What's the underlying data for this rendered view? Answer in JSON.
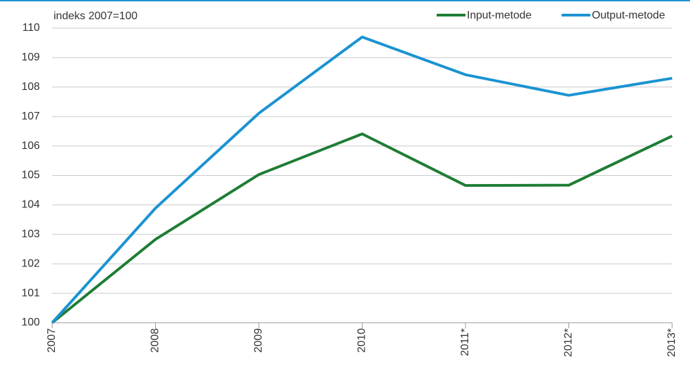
{
  "chart_data": {
    "type": "line",
    "y_axis_label": "indeks 2007=100",
    "categories": [
      "2007",
      "2008",
      "2009",
      "2010",
      "2011*",
      "2012*",
      "2013*"
    ],
    "series": [
      {
        "name": "Input-metode",
        "color": "#1e7d34",
        "values": [
          100,
          102.83,
          105.03,
          106.41,
          104.66,
          104.67,
          106.34
        ]
      },
      {
        "name": "Output-metode",
        "color": "#1b93d2",
        "values": [
          100,
          103.89,
          107.11,
          109.7,
          108.42,
          107.72,
          108.3
        ]
      }
    ],
    "ylim": [
      100,
      110
    ],
    "yticks": [
      100,
      101,
      102,
      103,
      104,
      105,
      106,
      107,
      108,
      109,
      110
    ],
    "grid": true,
    "legend": "top-right"
  }
}
